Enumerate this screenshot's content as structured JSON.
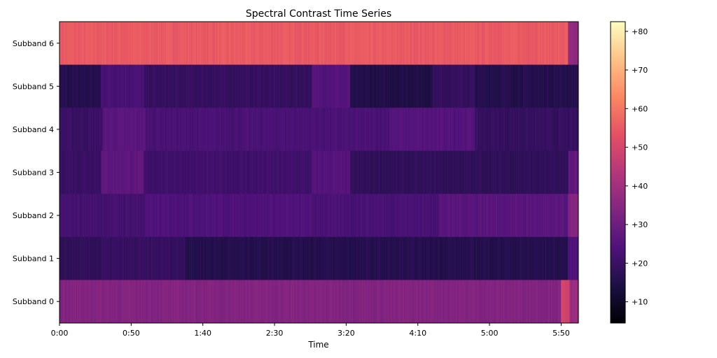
{
  "chart_data": {
    "type": "heatmap",
    "title": "Spectral Contrast Time Series",
    "xlabel": "Time",
    "ylabel": "",
    "xlim": [
      0,
      362
    ],
    "x_tick_values": [
      0,
      50,
      100,
      150,
      200,
      250,
      300,
      350
    ],
    "x_tick_labels": [
      "0:00",
      "0:50",
      "1:40",
      "2:30",
      "3:20",
      "4:10",
      "5:00",
      "5:50"
    ],
    "rows": [
      "Subband 0",
      "Subband 1",
      "Subband 2",
      "Subband 3",
      "Subband 4",
      "Subband 5",
      "Subband 6"
    ],
    "segments": [
      {
        "row": "Subband 6",
        "spans": [
          [
            0,
            355,
            55
          ],
          [
            355,
            362,
            36
          ]
        ]
      },
      {
        "row": "Subband 5",
        "spans": [
          [
            0,
            29,
            16
          ],
          [
            29,
            59,
            23
          ],
          [
            59,
            176,
            19
          ],
          [
            176,
            203,
            25
          ],
          [
            203,
            260,
            15
          ],
          [
            260,
            290,
            19
          ],
          [
            290,
            362,
            16
          ]
        ]
      },
      {
        "row": "Subband 4",
        "spans": [
          [
            0,
            30,
            20
          ],
          [
            30,
            60,
            26
          ],
          [
            60,
            230,
            23
          ],
          [
            230,
            290,
            25
          ],
          [
            290,
            362,
            19
          ]
        ]
      },
      {
        "row": "Subband 3",
        "spans": [
          [
            0,
            29,
            20
          ],
          [
            29,
            59,
            27
          ],
          [
            59,
            176,
            21
          ],
          [
            176,
            203,
            25
          ],
          [
            203,
            355,
            18
          ],
          [
            355,
            362,
            27
          ]
        ]
      },
      {
        "row": "Subband 2",
        "spans": [
          [
            0,
            60,
            22
          ],
          [
            60,
            175,
            24
          ],
          [
            175,
            265,
            23
          ],
          [
            265,
            355,
            26
          ],
          [
            355,
            362,
            34
          ]
        ]
      },
      {
        "row": "Subband 1",
        "spans": [
          [
            0,
            29,
            18
          ],
          [
            29,
            88,
            19
          ],
          [
            88,
            355,
            16
          ],
          [
            355,
            362,
            24
          ]
        ]
      },
      {
        "row": "Subband 0",
        "spans": [
          [
            0,
            350,
            34
          ],
          [
            350,
            356,
            49
          ],
          [
            356,
            362,
            38
          ]
        ]
      }
    ],
    "colorbar": {
      "colormap": "magma",
      "range": [
        4.5,
        82.5
      ],
      "tick_values": [
        10,
        20,
        30,
        40,
        50,
        60,
        70,
        80
      ],
      "tick_labels": [
        "+10",
        "+20",
        "+30",
        "+40",
        "+50",
        "+60",
        "+70",
        "+80"
      ]
    },
    "grid": false
  }
}
